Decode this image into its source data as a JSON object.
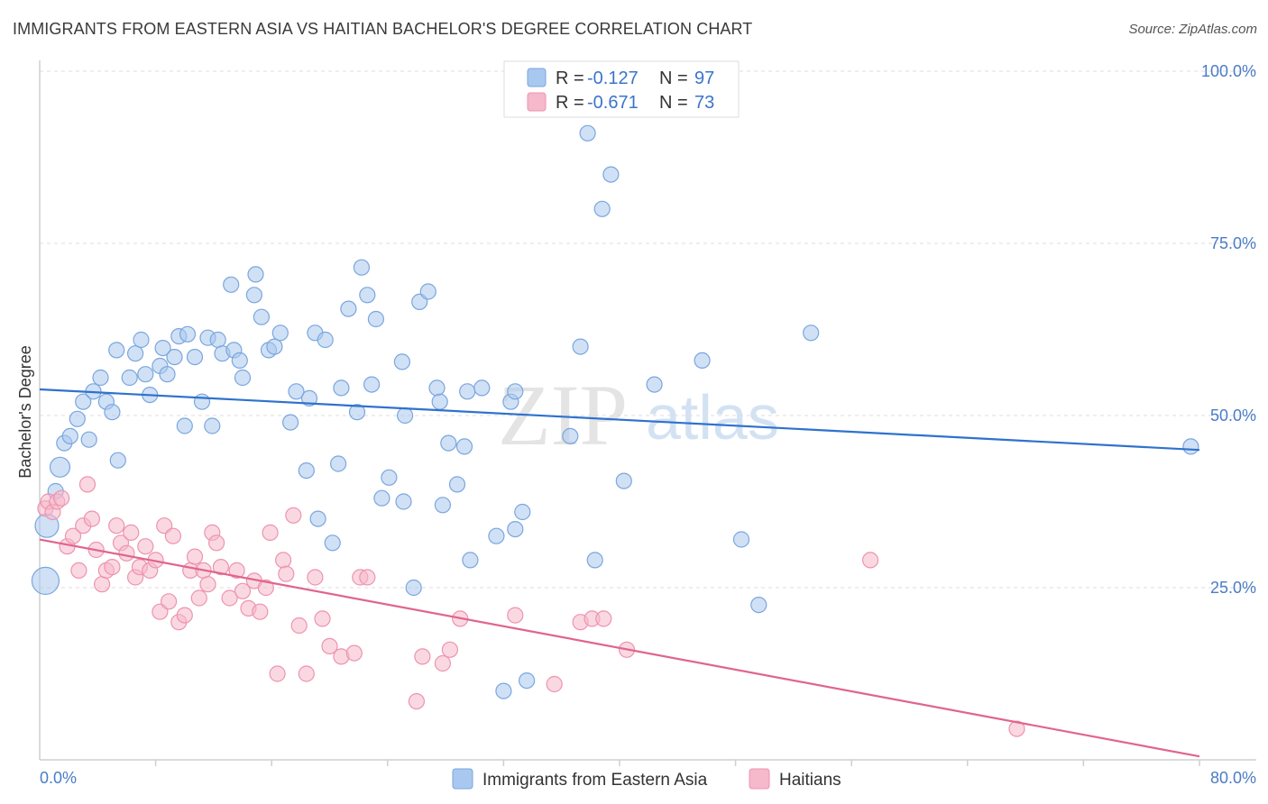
{
  "title": "IMMIGRANTS FROM EASTERN ASIA VS HAITIAN BACHELOR'S DEGREE CORRELATION CHART",
  "source": "Source: ZipAtlas.com",
  "watermark": {
    "zip": "ZIP",
    "atlas": "atlas"
  },
  "legend": {
    "items": [
      {
        "r_label": "R =",
        "r_value": "-0.127",
        "n_label": "N =",
        "n_value": "97",
        "color": "#a9c8ef"
      },
      {
        "r_label": "R =",
        "r_value": "-0.671",
        "n_label": "N =",
        "n_value": "73",
        "color": "#f6b8cb"
      }
    ]
  },
  "bottom_legend": [
    {
      "label": "Immigrants from Eastern Asia",
      "color": "#a9c8ef"
    },
    {
      "label": "Haitians",
      "color": "#f6b8cb"
    }
  ],
  "chart_data": {
    "type": "scatter",
    "title": "IMMIGRANTS FROM EASTERN ASIA VS HAITIAN BACHELOR'S DEGREE CORRELATION CHART",
    "xlabel": "",
    "ylabel": "Bachelor's Degree",
    "xlim": [
      0,
      80
    ],
    "ylim": [
      0,
      100
    ],
    "x_tick_labels": [
      "0.0%",
      "80.0%"
    ],
    "y_tick_labels": [
      "25.0%",
      "50.0%",
      "75.0%",
      "100.0%"
    ],
    "y_ticks": [
      25,
      50,
      75,
      100
    ],
    "grid": true,
    "legend_position": "top-center",
    "series": [
      {
        "name": "Immigrants from Eastern Asia",
        "color": "#a9c8ef",
        "stroke": "#7aa6dd",
        "trend": {
          "x": [
            0,
            80
          ],
          "y": [
            53.8,
            45.0
          ],
          "color": "#2f72cd"
        },
        "points": [
          [
            0.4,
            26
          ],
          [
            0.5,
            34
          ],
          [
            1.1,
            39
          ],
          [
            1.4,
            42.5
          ],
          [
            1.7,
            46
          ],
          [
            2.1,
            47
          ],
          [
            2.6,
            49.5
          ],
          [
            3.0,
            52
          ],
          [
            3.4,
            46.5
          ],
          [
            3.7,
            53.5
          ],
          [
            4.2,
            55.5
          ],
          [
            4.6,
            52
          ],
          [
            5.0,
            50.5
          ],
          [
            5.4,
            43.5
          ],
          [
            5.3,
            59.5
          ],
          [
            6.2,
            55.5
          ],
          [
            6.6,
            59
          ],
          [
            7.0,
            61
          ],
          [
            7.3,
            56
          ],
          [
            7.6,
            53
          ],
          [
            8.3,
            57.2
          ],
          [
            8.5,
            59.8
          ],
          [
            8.8,
            56
          ],
          [
            9.3,
            58.5
          ],
          [
            9.6,
            61.5
          ],
          [
            10.0,
            48.5
          ],
          [
            10.2,
            61.8
          ],
          [
            10.7,
            58.5
          ],
          [
            11.2,
            52
          ],
          [
            11.6,
            61.3
          ],
          [
            11.9,
            48.5
          ],
          [
            12.3,
            61
          ],
          [
            12.6,
            59
          ],
          [
            13.2,
            69
          ],
          [
            13.4,
            59.5
          ],
          [
            13.8,
            58
          ],
          [
            14.0,
            55.5
          ],
          [
            14.8,
            67.5
          ],
          [
            14.9,
            70.5
          ],
          [
            15.3,
            64.3
          ],
          [
            15.8,
            59.5
          ],
          [
            16.2,
            60
          ],
          [
            16.6,
            62
          ],
          [
            17.3,
            49
          ],
          [
            17.7,
            53.5
          ],
          [
            18.4,
            42
          ],
          [
            18.6,
            52.5
          ],
          [
            19.0,
            62
          ],
          [
            19.2,
            35
          ],
          [
            19.7,
            61
          ],
          [
            20.2,
            31.5
          ],
          [
            20.6,
            43
          ],
          [
            20.8,
            54
          ],
          [
            21.3,
            65.5
          ],
          [
            21.9,
            50.5
          ],
          [
            22.2,
            71.5
          ],
          [
            22.6,
            67.5
          ],
          [
            22.9,
            54.5
          ],
          [
            23.2,
            64
          ],
          [
            23.6,
            38
          ],
          [
            24.1,
            41
          ],
          [
            25.0,
            57.8
          ],
          [
            25.1,
            37.5
          ],
          [
            25.2,
            50
          ],
          [
            25.8,
            25
          ],
          [
            26.2,
            66.5
          ],
          [
            26.8,
            68
          ],
          [
            27.4,
            54
          ],
          [
            27.6,
            52
          ],
          [
            27.8,
            37
          ],
          [
            28.2,
            46
          ],
          [
            28.8,
            40
          ],
          [
            29.3,
            45.5
          ],
          [
            29.5,
            53.5
          ],
          [
            29.7,
            29
          ],
          [
            30.5,
            54
          ],
          [
            31.5,
            32.5
          ],
          [
            32.0,
            10
          ],
          [
            32.5,
            52
          ],
          [
            32.8,
            53.5
          ],
          [
            32.8,
            33.5
          ],
          [
            33.3,
            36
          ],
          [
            33.6,
            11.5
          ],
          [
            36.6,
            47
          ],
          [
            37.3,
            60
          ],
          [
            37.8,
            91
          ],
          [
            38.3,
            29
          ],
          [
            38.8,
            80
          ],
          [
            39.4,
            85
          ],
          [
            40.3,
            40.5
          ],
          [
            42.4,
            54.5
          ],
          [
            45.7,
            58
          ],
          [
            48.4,
            32
          ],
          [
            49.6,
            22.5
          ],
          [
            53.2,
            62
          ],
          [
            79.4,
            45.5
          ]
        ]
      },
      {
        "name": "Haitians",
        "color": "#f6b8cb",
        "stroke": "#ee93b0",
        "trend": {
          "x": [
            0,
            80
          ],
          "y": [
            32.0,
            0.5
          ],
          "color": "#e0648f"
        },
        "points": [
          [
            0.4,
            36.5
          ],
          [
            0.6,
            37.5
          ],
          [
            0.9,
            36
          ],
          [
            1.2,
            37.5
          ],
          [
            1.5,
            38
          ],
          [
            1.9,
            31
          ],
          [
            2.3,
            32.5
          ],
          [
            2.7,
            27.5
          ],
          [
            3.0,
            34
          ],
          [
            3.3,
            40
          ],
          [
            3.6,
            35
          ],
          [
            3.9,
            30.5
          ],
          [
            4.3,
            25.5
          ],
          [
            4.6,
            27.5
          ],
          [
            5.0,
            28
          ],
          [
            5.3,
            34
          ],
          [
            5.6,
            31.5
          ],
          [
            6.0,
            30
          ],
          [
            6.3,
            33
          ],
          [
            6.6,
            26.5
          ],
          [
            6.9,
            28
          ],
          [
            7.3,
            31
          ],
          [
            7.6,
            27.5
          ],
          [
            8.0,
            29
          ],
          [
            8.3,
            21.5
          ],
          [
            8.6,
            34
          ],
          [
            8.9,
            23
          ],
          [
            9.2,
            32.5
          ],
          [
            9.6,
            20
          ],
          [
            10.0,
            21
          ],
          [
            10.4,
            27.5
          ],
          [
            10.7,
            29.5
          ],
          [
            11.0,
            23.5
          ],
          [
            11.3,
            27.5
          ],
          [
            11.6,
            25.5
          ],
          [
            11.9,
            33
          ],
          [
            12.2,
            31.5
          ],
          [
            12.5,
            28
          ],
          [
            13.1,
            23.5
          ],
          [
            13.6,
            27.5
          ],
          [
            14.0,
            24.5
          ],
          [
            14.4,
            22
          ],
          [
            14.8,
            26
          ],
          [
            15.2,
            21.5
          ],
          [
            15.6,
            25
          ],
          [
            15.9,
            33
          ],
          [
            16.4,
            12.5
          ],
          [
            16.8,
            29
          ],
          [
            17.0,
            27
          ],
          [
            17.5,
            35.5
          ],
          [
            17.9,
            19.5
          ],
          [
            18.4,
            12.5
          ],
          [
            19.0,
            26.5
          ],
          [
            19.5,
            20.5
          ],
          [
            20.0,
            16.5
          ],
          [
            20.8,
            15
          ],
          [
            21.7,
            15.5
          ],
          [
            22.1,
            26.5
          ],
          [
            22.6,
            26.5
          ],
          [
            26.0,
            8.5
          ],
          [
            26.4,
            15
          ],
          [
            27.8,
            14
          ],
          [
            28.3,
            16
          ],
          [
            29.0,
            20.5
          ],
          [
            32.8,
            21
          ],
          [
            35.5,
            11
          ],
          [
            37.3,
            20
          ],
          [
            38.1,
            20.5
          ],
          [
            38.9,
            20.5
          ],
          [
            40.5,
            16
          ],
          [
            57.3,
            29
          ],
          [
            67.4,
            4.5
          ]
        ]
      }
    ]
  }
}
